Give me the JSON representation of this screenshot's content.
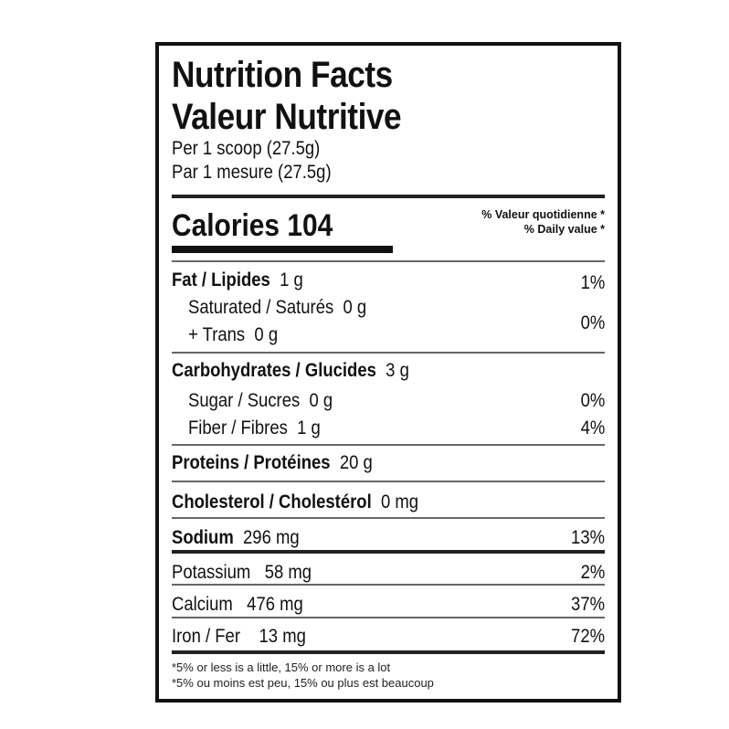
{
  "title_en": "Nutrition Facts",
  "title_fr": "Valeur Nutritive",
  "serving_en": "Per 1 scoop (27.5g)",
  "serving_fr": "Par 1 mesure (27.5g)",
  "calories": "Calories 104",
  "dv_header_fr": "% Valeur quotidienne *",
  "dv_header_en": "% Daily value *",
  "rows": {
    "fat": {
      "label": "Fat / Lipides",
      "amount": "1 g",
      "dv": "1%"
    },
    "saturated": {
      "label": "Saturated / Saturés",
      "amount": "0 g"
    },
    "trans": {
      "label": "+ Trans",
      "amount": "0 g",
      "dv": "0%"
    },
    "carbs": {
      "label": "Carbohydrates / Glucides",
      "amount": "3 g"
    },
    "sugar": {
      "label": "Sugar / Sucres",
      "amount": "0 g",
      "dv": "0%"
    },
    "fiber": {
      "label": "Fiber / Fibres",
      "amount": "1 g",
      "dv": "4%"
    },
    "protein": {
      "label": "Proteins / Protéines",
      "amount": "20 g"
    },
    "cholesterol": {
      "label": "Cholesterol / Cholestérol",
      "amount": "0 mg"
    },
    "sodium": {
      "label": "Sodium",
      "amount": "296 mg",
      "dv": "13%"
    },
    "potassium": {
      "label": "Potassium",
      "amount": "58 mg",
      "dv": "2%"
    },
    "calcium": {
      "label": "Calcium",
      "amount": "476 mg",
      "dv": "37%"
    },
    "iron": {
      "label": "Iron / Fer",
      "amount": "13 mg",
      "dv": "72%"
    }
  },
  "footnote_en": "*5% or less is a little, 15% or more is a lot",
  "footnote_fr": "*5% ou moins est peu, 15% ou plus est beaucoup"
}
